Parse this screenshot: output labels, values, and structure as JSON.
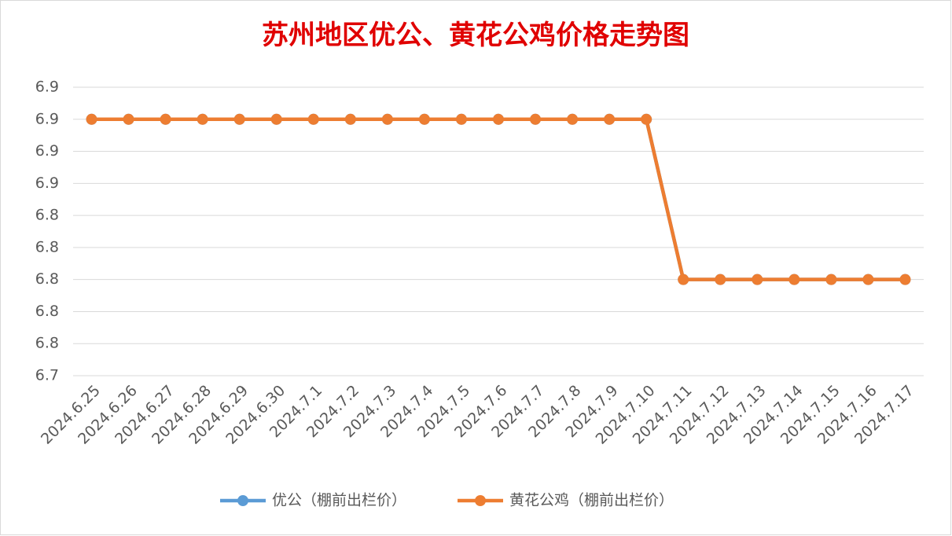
{
  "chart_data": {
    "type": "line",
    "title": "苏州地区优公、黄花公鸡价格走势图",
    "categories": [
      "2024.6.25",
      "2024.6.26",
      "2024.6.27",
      "2024.6.28",
      "2024.6.29",
      "2024.6.30",
      "2024.7.1",
      "2024.7.2",
      "2024.7.3",
      "2024.7.4",
      "2024.7.5",
      "2024.7.6",
      "2024.7.7",
      "2024.7.8",
      "2024.7.9",
      "2024.7.10",
      "2024.7.11",
      "2024.7.12",
      "2024.7.13",
      "2024.7.14",
      "2024.7.15",
      "2024.7.16",
      "2024.7.17"
    ],
    "series": [
      {
        "name": "优公（棚前出栏价）",
        "color": "#5b9bd5",
        "values": [
          6.9,
          6.9,
          6.9,
          6.9,
          6.9,
          6.9,
          6.9,
          6.9,
          6.9,
          6.9,
          6.9,
          6.9,
          6.9,
          6.9,
          6.9,
          6.9,
          6.8,
          6.8,
          6.8,
          6.8,
          6.8,
          6.8,
          6.8
        ]
      },
      {
        "name": "黄花公鸡（棚前出栏价）",
        "color": "#ed7d31",
        "values": [
          6.9,
          6.9,
          6.9,
          6.9,
          6.9,
          6.9,
          6.9,
          6.9,
          6.9,
          6.9,
          6.9,
          6.9,
          6.9,
          6.9,
          6.9,
          6.9,
          6.8,
          6.8,
          6.8,
          6.8,
          6.8,
          6.8,
          6.8
        ]
      }
    ],
    "ylim": [
      6.74,
      6.92
    ],
    "yticks": [
      {
        "value": 6.74,
        "label": "6.7"
      },
      {
        "value": 6.76,
        "label": "6.8"
      },
      {
        "value": 6.78,
        "label": "6.8"
      },
      {
        "value": 6.8,
        "label": "6.8"
      },
      {
        "value": 6.82,
        "label": "6.8"
      },
      {
        "value": 6.84,
        "label": "6.8"
      },
      {
        "value": 6.86,
        "label": "6.9"
      },
      {
        "value": 6.88,
        "label": "6.9"
      },
      {
        "value": 6.9,
        "label": "6.9"
      },
      {
        "value": 6.92,
        "label": "6.9"
      }
    ],
    "grid": true,
    "legend": "bottom"
  }
}
